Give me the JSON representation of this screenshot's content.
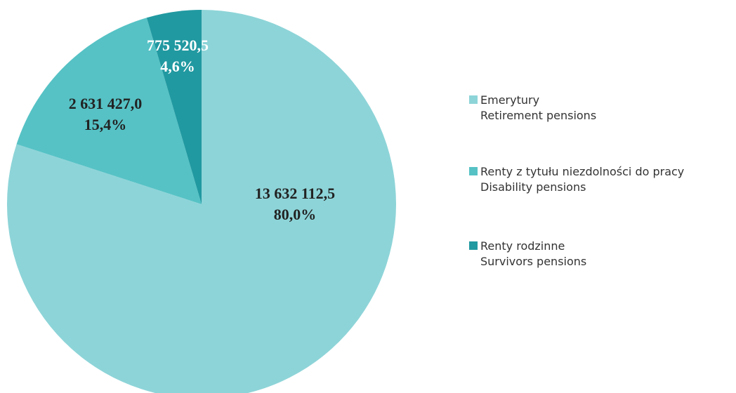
{
  "chart_data": {
    "type": "pie",
    "categories": [
      "Emerytury",
      "Renty z tytułu niezdolności do pracy",
      "Renty rodzinne"
    ],
    "categories_en": [
      "Retirement pensions",
      "Disability pensions",
      "Survivors pensions"
    ],
    "values": [
      13632112.5,
      2631427.0,
      775520.5
    ],
    "value_labels": [
      "13 632 112,5",
      "2 631 427,0",
      "775 520,5"
    ],
    "percents": [
      80.0,
      15.4,
      4.6
    ],
    "percent_labels": [
      "80,0%",
      "15,4%",
      "4,6%"
    ],
    "colors": [
      "#8dd4d8",
      "#56c2c5",
      "#2199a1"
    ]
  }
}
